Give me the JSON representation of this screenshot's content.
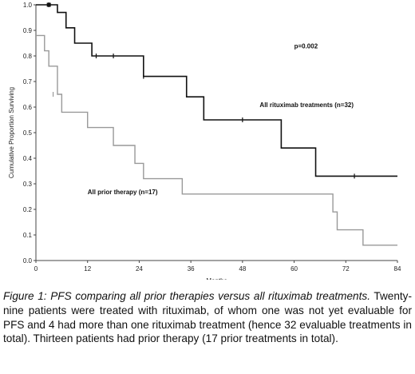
{
  "chart_data": {
    "type": "line",
    "xlabel": "Months",
    "ylabel": "Cumulative Proportion Surviving",
    "xlim": [
      0,
      84
    ],
    "ylim": [
      0,
      1.0
    ],
    "xticks": [
      "0",
      "12",
      "24",
      "36",
      "48",
      "60",
      "72",
      "84"
    ],
    "yticks": [
      "0.0",
      "0.1",
      "0.2",
      "0.3",
      "0.4",
      "0.5",
      "0.6",
      "0.7",
      "0.8",
      "0.9",
      "1.0"
    ],
    "grid": false,
    "legend": "none",
    "series": [
      {
        "name": "All rituximab treatments (n=32)",
        "color": "#111111",
        "steps": [
          [
            0,
            1.0
          ],
          [
            5,
            0.97
          ],
          [
            7,
            0.91
          ],
          [
            9,
            0.85
          ],
          [
            13,
            0.8
          ],
          [
            25,
            0.72
          ],
          [
            35,
            0.64
          ],
          [
            39,
            0.55
          ],
          [
            57,
            0.44
          ],
          [
            65,
            0.33
          ],
          [
            84,
            0.33
          ]
        ],
        "censored": [
          [
            3,
            1.0
          ],
          [
            14,
            0.8
          ],
          [
            18,
            0.8
          ],
          [
            25,
            0.72
          ],
          [
            48,
            0.55
          ],
          [
            74,
            0.33
          ]
        ]
      },
      {
        "name": "All prior therapy (n=17)",
        "color": "#999999",
        "steps": [
          [
            0,
            0.88
          ],
          [
            2,
            0.82
          ],
          [
            3,
            0.76
          ],
          [
            5,
            0.65
          ],
          [
            6,
            0.58
          ],
          [
            12,
            0.52
          ],
          [
            18,
            0.45
          ],
          [
            23,
            0.38
          ],
          [
            25,
            0.32
          ],
          [
            34,
            0.26
          ],
          [
            69,
            0.19
          ],
          [
            70,
            0.12
          ],
          [
            76,
            0.06
          ],
          [
            84,
            0.06
          ]
        ],
        "censored": [
          [
            4,
            0.65
          ]
        ]
      }
    ],
    "annotations": [
      {
        "text": "p=0.002",
        "x": 60,
        "y": 0.83
      },
      {
        "text": "All rituximab treatments (n=32)",
        "x": 52,
        "y": 0.6
      },
      {
        "text": "All prior therapy (n=17)",
        "x": 12,
        "y": 0.26
      }
    ]
  },
  "caption": {
    "lead": "Figure 1: PFS comparing all prior therapies versus all rituximab treatments.",
    "body": " Twenty-nine patients were treated with rituximab, of whom one was not yet evaluable for PFS and 4 had more than one rituximab treatment (hence 32 evaluable treatments in total). Thirteen patients had prior therapy (17 prior treatments in total)."
  }
}
